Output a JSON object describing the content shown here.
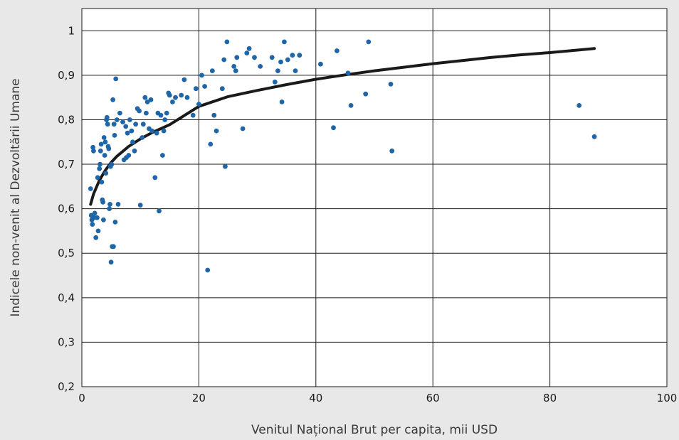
{
  "chart_data": {
    "type": "scatter",
    "title": "",
    "xlabel": "Venitul Național Brut per capita, mii USD",
    "ylabel": "Indicele non-venit al Dezvoltării Umane",
    "xlim": [
      0,
      100
    ],
    "ylim": [
      0.2,
      1.05
    ],
    "x_ticks": [
      0,
      20,
      40,
      60,
      80,
      100
    ],
    "y_ticks": [
      0.2,
      0.3,
      0.4,
      0.5,
      0.6,
      0.7,
      0.8,
      0.9,
      1.0
    ],
    "x_tick_labels": [
      "0",
      "20",
      "40",
      "60",
      "80",
      "100"
    ],
    "y_tick_labels": [
      "0,2",
      "0,3",
      "0,4",
      "0,5",
      "0,6",
      "0,7",
      "0,8",
      "0,9",
      "1"
    ],
    "grid": true,
    "legend": "none",
    "colors": {
      "points": "#1f66a8",
      "trend": "#1a1a1a",
      "grid": "#1a1a1a",
      "plot_bg": "#ffffff",
      "page_bg": "#e8e8e8"
    },
    "trendline": {
      "type": "logarithmic",
      "points": [
        [
          1.5,
          0.61
        ],
        [
          2.0,
          0.633
        ],
        [
          3.0,
          0.664
        ],
        [
          4.0,
          0.686
        ],
        [
          5.0,
          0.704
        ],
        [
          6.0,
          0.718
        ],
        [
          8.0,
          0.74
        ],
        [
          10.0,
          0.757
        ],
        [
          12.0,
          0.771
        ],
        [
          15.0,
          0.789
        ],
        [
          20.0,
          0.83
        ],
        [
          25.0,
          0.852
        ],
        [
          30.0,
          0.866
        ],
        [
          35.0,
          0.879
        ],
        [
          40.0,
          0.891
        ],
        [
          45.0,
          0.901
        ],
        [
          50.0,
          0.91
        ],
        [
          55.0,
          0.918
        ],
        [
          60.0,
          0.926
        ],
        [
          65.0,
          0.933
        ],
        [
          70.0,
          0.94
        ],
        [
          75.0,
          0.946
        ],
        [
          80.0,
          0.951
        ],
        [
          85.0,
          0.957
        ],
        [
          87.6,
          0.96
        ]
      ]
    },
    "series": [
      {
        "points": [
          [
            1.5,
            0.645
          ],
          [
            1.6,
            0.585
          ],
          [
            1.7,
            0.575
          ],
          [
            1.8,
            0.565
          ],
          [
            1.9,
            0.738
          ],
          [
            2.0,
            0.73
          ],
          [
            2.1,
            0.58
          ],
          [
            2.2,
            0.59
          ],
          [
            2.4,
            0.535
          ],
          [
            2.6,
            0.58
          ],
          [
            2.7,
            0.67
          ],
          [
            2.8,
            0.55
          ],
          [
            3.0,
            0.69
          ],
          [
            3.1,
            0.7
          ],
          [
            3.2,
            0.73
          ],
          [
            3.3,
            0.745
          ],
          [
            3.4,
            0.66
          ],
          [
            3.5,
            0.62
          ],
          [
            3.6,
            0.615
          ],
          [
            3.7,
            0.575
          ],
          [
            3.8,
            0.76
          ],
          [
            3.9,
            0.72
          ],
          [
            4.0,
            0.75
          ],
          [
            4.1,
            0.68
          ],
          [
            4.2,
            0.8
          ],
          [
            4.3,
            0.805
          ],
          [
            4.4,
            0.79
          ],
          [
            4.5,
            0.74
          ],
          [
            4.6,
            0.735
          ],
          [
            4.7,
            0.6
          ],
          [
            4.8,
            0.61
          ],
          [
            4.9,
            0.695
          ],
          [
            5.0,
            0.48
          ],
          [
            5.1,
            0.7
          ],
          [
            5.2,
            0.515
          ],
          [
            5.3,
            0.845
          ],
          [
            5.4,
            0.515
          ],
          [
            5.5,
            0.79
          ],
          [
            5.6,
            0.765
          ],
          [
            5.7,
            0.57
          ],
          [
            5.8,
            0.892
          ],
          [
            6.0,
            0.8
          ],
          [
            6.2,
            0.61
          ],
          [
            6.5,
            0.815
          ],
          [
            7.0,
            0.795
          ],
          [
            7.2,
            0.71
          ],
          [
            7.5,
            0.785
          ],
          [
            7.6,
            0.715
          ],
          [
            7.8,
            0.77
          ],
          [
            8.0,
            0.72
          ],
          [
            8.2,
            0.8
          ],
          [
            8.5,
            0.775
          ],
          [
            8.7,
            0.75
          ],
          [
            9.0,
            0.73
          ],
          [
            9.2,
            0.79
          ],
          [
            9.5,
            0.825
          ],
          [
            9.8,
            0.82
          ],
          [
            10.0,
            0.608
          ],
          [
            10.3,
            0.76
          ],
          [
            10.5,
            0.79
          ],
          [
            10.8,
            0.85
          ],
          [
            11.0,
            0.815
          ],
          [
            11.2,
            0.84
          ],
          [
            11.5,
            0.78
          ],
          [
            11.8,
            0.845
          ],
          [
            12.0,
            0.775
          ],
          [
            12.5,
            0.67
          ],
          [
            12.8,
            0.77
          ],
          [
            13.0,
            0.815
          ],
          [
            13.2,
            0.595
          ],
          [
            13.5,
            0.81
          ],
          [
            13.8,
            0.72
          ],
          [
            14.0,
            0.775
          ],
          [
            14.2,
            0.8
          ],
          [
            14.5,
            0.815
          ],
          [
            14.8,
            0.86
          ],
          [
            15.0,
            0.855
          ],
          [
            15.5,
            0.84
          ],
          [
            16.0,
            0.85
          ],
          [
            17.0,
            0.855
          ],
          [
            17.5,
            0.89
          ],
          [
            18.0,
            0.85
          ],
          [
            19.0,
            0.81
          ],
          [
            19.5,
            0.87
          ],
          [
            20.0,
            0.835
          ],
          [
            20.5,
            0.9
          ],
          [
            21.0,
            0.875
          ],
          [
            21.5,
            0.462
          ],
          [
            22.0,
            0.745
          ],
          [
            22.3,
            0.91
          ],
          [
            22.6,
            0.81
          ],
          [
            23.0,
            0.775
          ],
          [
            24.0,
            0.87
          ],
          [
            24.3,
            0.935
          ],
          [
            24.5,
            0.695
          ],
          [
            24.8,
            0.975
          ],
          [
            26.0,
            0.92
          ],
          [
            26.3,
            0.91
          ],
          [
            26.5,
            0.94
          ],
          [
            27.5,
            0.78
          ],
          [
            28.2,
            0.95
          ],
          [
            28.6,
            0.96
          ],
          [
            29.5,
            0.94
          ],
          [
            30.5,
            0.92
          ],
          [
            32.5,
            0.94
          ],
          [
            33.0,
            0.885
          ],
          [
            33.5,
            0.91
          ],
          [
            34.0,
            0.93
          ],
          [
            34.2,
            0.84
          ],
          [
            34.6,
            0.975
          ],
          [
            35.2,
            0.935
          ],
          [
            36.0,
            0.945
          ],
          [
            36.5,
            0.91
          ],
          [
            37.2,
            0.945
          ],
          [
            40.8,
            0.925
          ],
          [
            43.0,
            0.782
          ],
          [
            43.6,
            0.955
          ],
          [
            45.5,
            0.905
          ],
          [
            46.0,
            0.832
          ],
          [
            48.5,
            0.858
          ],
          [
            49.0,
            0.975
          ],
          [
            52.8,
            0.88
          ],
          [
            53.0,
            0.73
          ],
          [
            85.0,
            0.832
          ],
          [
            87.6,
            0.762
          ]
        ]
      }
    ]
  }
}
